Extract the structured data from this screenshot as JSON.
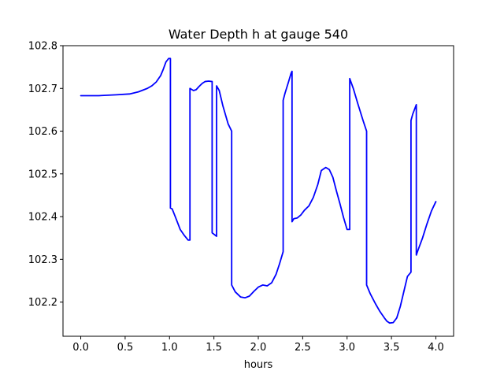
{
  "chart_data": {
    "type": "line",
    "title": "Water Depth h at gauge 540",
    "xlabel": "hours",
    "ylabel": "",
    "xlim": [
      -0.2,
      4.2
    ],
    "ylim": [
      102.12,
      102.8
    ],
    "xticks": [
      0.0,
      0.5,
      1.0,
      1.5,
      2.0,
      2.5,
      3.0,
      3.5,
      4.0
    ],
    "xtick_labels": [
      "0.0",
      "0.5",
      "1.0",
      "1.5",
      "2.0",
      "2.5",
      "3.0",
      "3.5",
      "4.0"
    ],
    "yticks": [
      102.2,
      102.3,
      102.4,
      102.5,
      102.6,
      102.7,
      102.8
    ],
    "ytick_labels": [
      "102.2",
      "102.3",
      "102.4",
      "102.5",
      "102.6",
      "102.7",
      "102.8"
    ],
    "grid": false,
    "series": [
      {
        "color": "#0000ff",
        "x": [
          0.0,
          0.2,
          0.4,
          0.55,
          0.65,
          0.75,
          0.8,
          0.85,
          0.9,
          0.93,
          0.96,
          0.99,
          1.01,
          1.01,
          1.03,
          1.07,
          1.12,
          1.17,
          1.21,
          1.23,
          1.23,
          1.27,
          1.3,
          1.33,
          1.37,
          1.4,
          1.44,
          1.48,
          1.48,
          1.53,
          1.53,
          1.56,
          1.6,
          1.66,
          1.7,
          1.7,
          1.74,
          1.8,
          1.85,
          1.9,
          1.95,
          2.0,
          2.05,
          2.1,
          2.15,
          2.2,
          2.24,
          2.28,
          2.28,
          2.3,
          2.34,
          2.37,
          2.38,
          2.38,
          2.4,
          2.44,
          2.48,
          2.52,
          2.57,
          2.62,
          2.67,
          2.71,
          2.76,
          2.8,
          2.84,
          2.88,
          2.92,
          2.96,
          3.0,
          3.03,
          3.03,
          3.07,
          3.12,
          3.18,
          3.22,
          3.22,
          3.26,
          3.32,
          3.37,
          3.42,
          3.45,
          3.48,
          3.52,
          3.56,
          3.6,
          3.64,
          3.68,
          3.72,
          3.72,
          3.74,
          3.78,
          3.78,
          3.8,
          3.85,
          3.9,
          3.95,
          4.0
        ],
        "y": [
          102.683,
          102.683,
          102.685,
          102.687,
          102.692,
          102.7,
          102.706,
          102.715,
          102.73,
          102.745,
          102.762,
          102.77,
          102.77,
          102.42,
          102.418,
          102.397,
          102.37,
          102.355,
          102.345,
          102.345,
          102.7,
          102.695,
          102.697,
          102.704,
          102.712,
          102.716,
          102.717,
          102.716,
          102.362,
          102.354,
          102.706,
          102.695,
          102.66,
          102.617,
          102.6,
          102.24,
          102.224,
          102.212,
          102.21,
          102.214,
          102.225,
          102.235,
          102.24,
          102.238,
          102.245,
          102.265,
          102.29,
          102.318,
          102.672,
          102.688,
          102.715,
          102.736,
          102.74,
          102.388,
          102.395,
          102.397,
          102.404,
          102.415,
          102.425,
          102.445,
          102.475,
          102.508,
          102.515,
          102.51,
          102.492,
          102.46,
          102.43,
          102.398,
          102.37,
          102.37,
          102.723,
          102.7,
          102.665,
          102.625,
          102.6,
          102.24,
          102.22,
          102.196,
          102.178,
          102.163,
          102.155,
          102.151,
          102.152,
          102.163,
          102.19,
          102.225,
          102.26,
          102.27,
          102.625,
          102.64,
          102.662,
          102.31,
          102.322,
          102.35,
          102.383,
          102.413,
          102.435
        ]
      }
    ]
  }
}
